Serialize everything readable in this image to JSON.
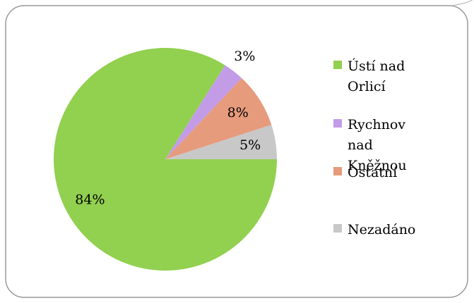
{
  "chart_data": {
    "type": "pie",
    "categories": [
      "Ústí nad Orlicí",
      "Rychnov nad Kněžnou",
      "Ostatní",
      "Nezadáno"
    ],
    "values": [
      84,
      3,
      8,
      5
    ],
    "value_labels": [
      "84%",
      "3%",
      "8%",
      "5%"
    ],
    "colors": [
      "#92d050",
      "#c39ce8",
      "#e69b7c",
      "#c8c8c8"
    ]
  }
}
